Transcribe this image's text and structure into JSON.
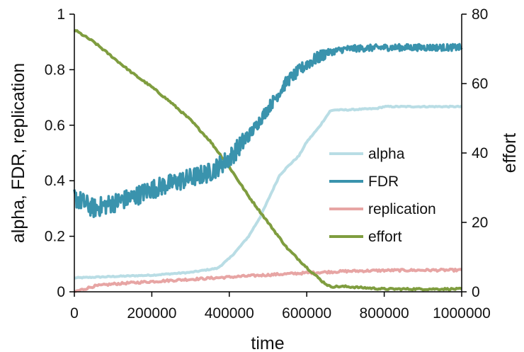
{
  "chart_data": {
    "type": "line",
    "xlabel": "time",
    "ylabel_left": "alpha, FDR, replication",
    "ylabel_right": "effort",
    "xlim": [
      0,
      1000000
    ],
    "ylim_left": [
      0,
      1
    ],
    "ylim_right": [
      0,
      80
    ],
    "x_ticks": [
      0,
      200000,
      400000,
      600000,
      800000,
      1000000
    ],
    "x_tick_labels": [
      "0",
      "200000",
      "400000",
      "600000",
      "800000",
      "1000000"
    ],
    "y_left_ticks": [
      0,
      0.2,
      0.4,
      0.6,
      0.8,
      1
    ],
    "y_left_tick_labels": [
      "0",
      "0.2",
      "0.4",
      "0.6",
      "0.8",
      "1"
    ],
    "y_right_ticks": [
      0,
      20,
      40,
      60,
      80
    ],
    "y_right_tick_labels": [
      "0",
      "20",
      "40",
      "60",
      "80"
    ],
    "grid": false,
    "legend_position": "right-middle",
    "series": [
      {
        "name": "alpha",
        "axis": "left",
        "color": "#b9dde5",
        "x": [
          0,
          100000,
          200000,
          300000,
          370000,
          400000,
          420000,
          450000,
          480000,
          500000,
          530000,
          550000,
          580000,
          600000,
          630000,
          660000,
          670000,
          700000,
          780000,
          800000,
          900000,
          1000000
        ],
        "y": [
          0.05,
          0.055,
          0.06,
          0.07,
          0.085,
          0.12,
          0.15,
          0.2,
          0.27,
          0.33,
          0.42,
          0.45,
          0.49,
          0.54,
          0.59,
          0.65,
          0.655,
          0.655,
          0.66,
          0.667,
          0.667,
          0.667
        ]
      },
      {
        "name": "FDR",
        "axis": "left",
        "color": "#3a93ad",
        "x": [
          0,
          50000,
          100000,
          150000,
          200000,
          250000,
          300000,
          350000,
          400000,
          430000,
          460000,
          500000,
          550000,
          600000,
          650000,
          700000,
          800000,
          900000,
          1000000
        ],
        "y": [
          0.34,
          0.3,
          0.32,
          0.34,
          0.37,
          0.39,
          0.41,
          0.43,
          0.48,
          0.53,
          0.58,
          0.66,
          0.76,
          0.82,
          0.86,
          0.875,
          0.88,
          0.88,
          0.88
        ]
      },
      {
        "name": "replication",
        "axis": "left",
        "color": "#e7a5a4",
        "x": [
          0,
          50000,
          100000,
          200000,
          300000,
          400000,
          500000,
          600000,
          700000,
          800000,
          900000,
          1000000
        ],
        "y": [
          0.0,
          0.02,
          0.028,
          0.037,
          0.045,
          0.053,
          0.061,
          0.068,
          0.074,
          0.077,
          0.078,
          0.078
        ]
      },
      {
        "name": "effort",
        "axis": "right",
        "color": "#7f9d3f",
        "x": [
          0,
          50000,
          100000,
          150000,
          200000,
          250000,
          300000,
          350000,
          400000,
          450000,
          500000,
          550000,
          600000,
          640000,
          660000,
          700000,
          800000,
          900000,
          1000000
        ],
        "y": [
          75.5,
          72,
          67.5,
          63,
          59,
          54.5,
          49.5,
          43.5,
          36,
          27.5,
          20,
          12.5,
          7,
          3,
          1.5,
          1.5,
          0.8,
          0.8,
          0.8
        ]
      }
    ]
  }
}
